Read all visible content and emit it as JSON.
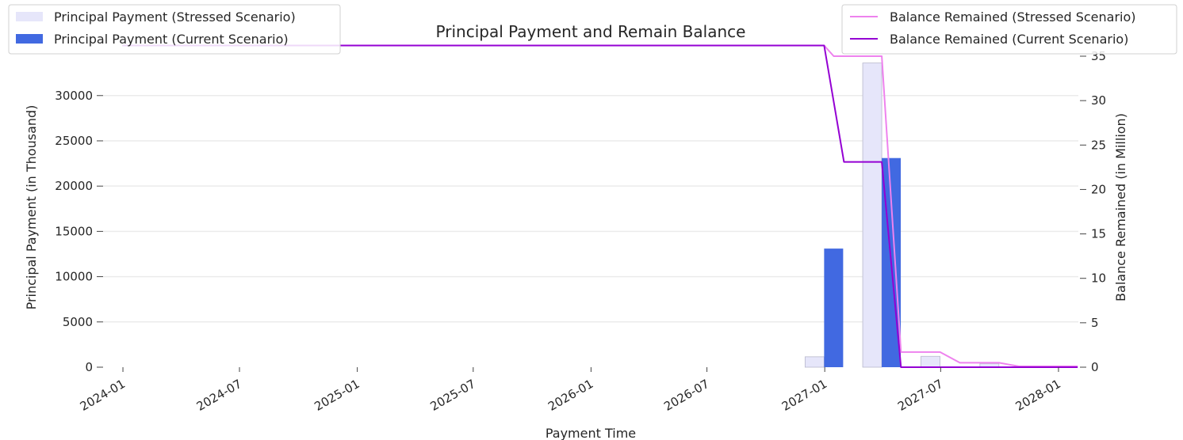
{
  "chart_data": {
    "type": "bar+line",
    "title": "Principal Payment and Remain Balance",
    "xlabel": "Payment Time",
    "ylabel_left": "Principal Payment (in Thousand)",
    "ylabel_right": "Balance Remained (in Million)",
    "x_ticks": [
      "2024-01",
      "2024-07",
      "2025-01",
      "2025-07",
      "2026-01",
      "2026-07",
      "2027-01",
      "2027-07",
      "2028-01"
    ],
    "y_left_ticks": [
      0,
      5000,
      10000,
      15000,
      20000,
      25000,
      30000
    ],
    "y_right_ticks": [
      0,
      5,
      10,
      15,
      20,
      25,
      30,
      35
    ],
    "y_left_lim": [
      0,
      34000
    ],
    "y_right_lim": [
      0,
      35
    ],
    "x_range": [
      "2023-12-01",
      "2028-02-01"
    ],
    "grid": "horizontal",
    "colors": {
      "stressed_bar": "#e6e6fa",
      "stressed_bar_edge": "#b8b8cc",
      "current_bar": "#4169e1",
      "stressed_line": "#ee82ee",
      "current_line": "#9400d3"
    },
    "bar_series": [
      {
        "name": "Principal Payment (Stressed Scenario)",
        "points": [
          {
            "date": "2026-12-31",
            "value": 1150
          },
          {
            "date": "2027-03-31",
            "value": 33600
          },
          {
            "date": "2027-06-30",
            "value": 1200
          },
          {
            "date": "2027-09-30",
            "value": 400
          },
          {
            "date": "2027-12-31",
            "value": 100
          }
        ]
      },
      {
        "name": "Principal Payment (Current Scenario)",
        "points": [
          {
            "date": "2026-12-31",
            "value": 13100
          },
          {
            "date": "2027-03-31",
            "value": 23100
          }
        ]
      }
    ],
    "line_series": [
      {
        "name": "Balance Remained (Stressed Scenario)",
        "points": [
          {
            "date": "2023-12-31",
            "value": 36.2
          },
          {
            "date": "2026-12-31",
            "value": 36.2
          },
          {
            "date": "2027-01-15",
            "value": 35.0
          },
          {
            "date": "2027-03-31",
            "value": 35.0
          },
          {
            "date": "2027-04-30",
            "value": 1.7
          },
          {
            "date": "2027-06-30",
            "value": 1.7
          },
          {
            "date": "2027-07-31",
            "value": 0.5
          },
          {
            "date": "2027-09-30",
            "value": 0.5
          },
          {
            "date": "2027-10-31",
            "value": 0.1
          },
          {
            "date": "2028-01-31",
            "value": 0.1
          }
        ]
      },
      {
        "name": "Balance Remained (Current Scenario)",
        "points": [
          {
            "date": "2023-12-31",
            "value": 36.2
          },
          {
            "date": "2026-12-31",
            "value": 36.2
          },
          {
            "date": "2027-01-31",
            "value": 23.1
          },
          {
            "date": "2027-03-31",
            "value": 23.1
          },
          {
            "date": "2027-04-30",
            "value": 0
          },
          {
            "date": "2028-01-31",
            "value": 0
          }
        ]
      }
    ],
    "legend_left": {
      "placement": "top-left",
      "entries": [
        "Principal Payment (Stressed Scenario)",
        "Principal Payment (Current Scenario)"
      ]
    },
    "legend_right": {
      "placement": "top-right",
      "entries": [
        "Balance Remained (Stressed Scenario)",
        "Balance Remained (Current Scenario)"
      ]
    }
  }
}
